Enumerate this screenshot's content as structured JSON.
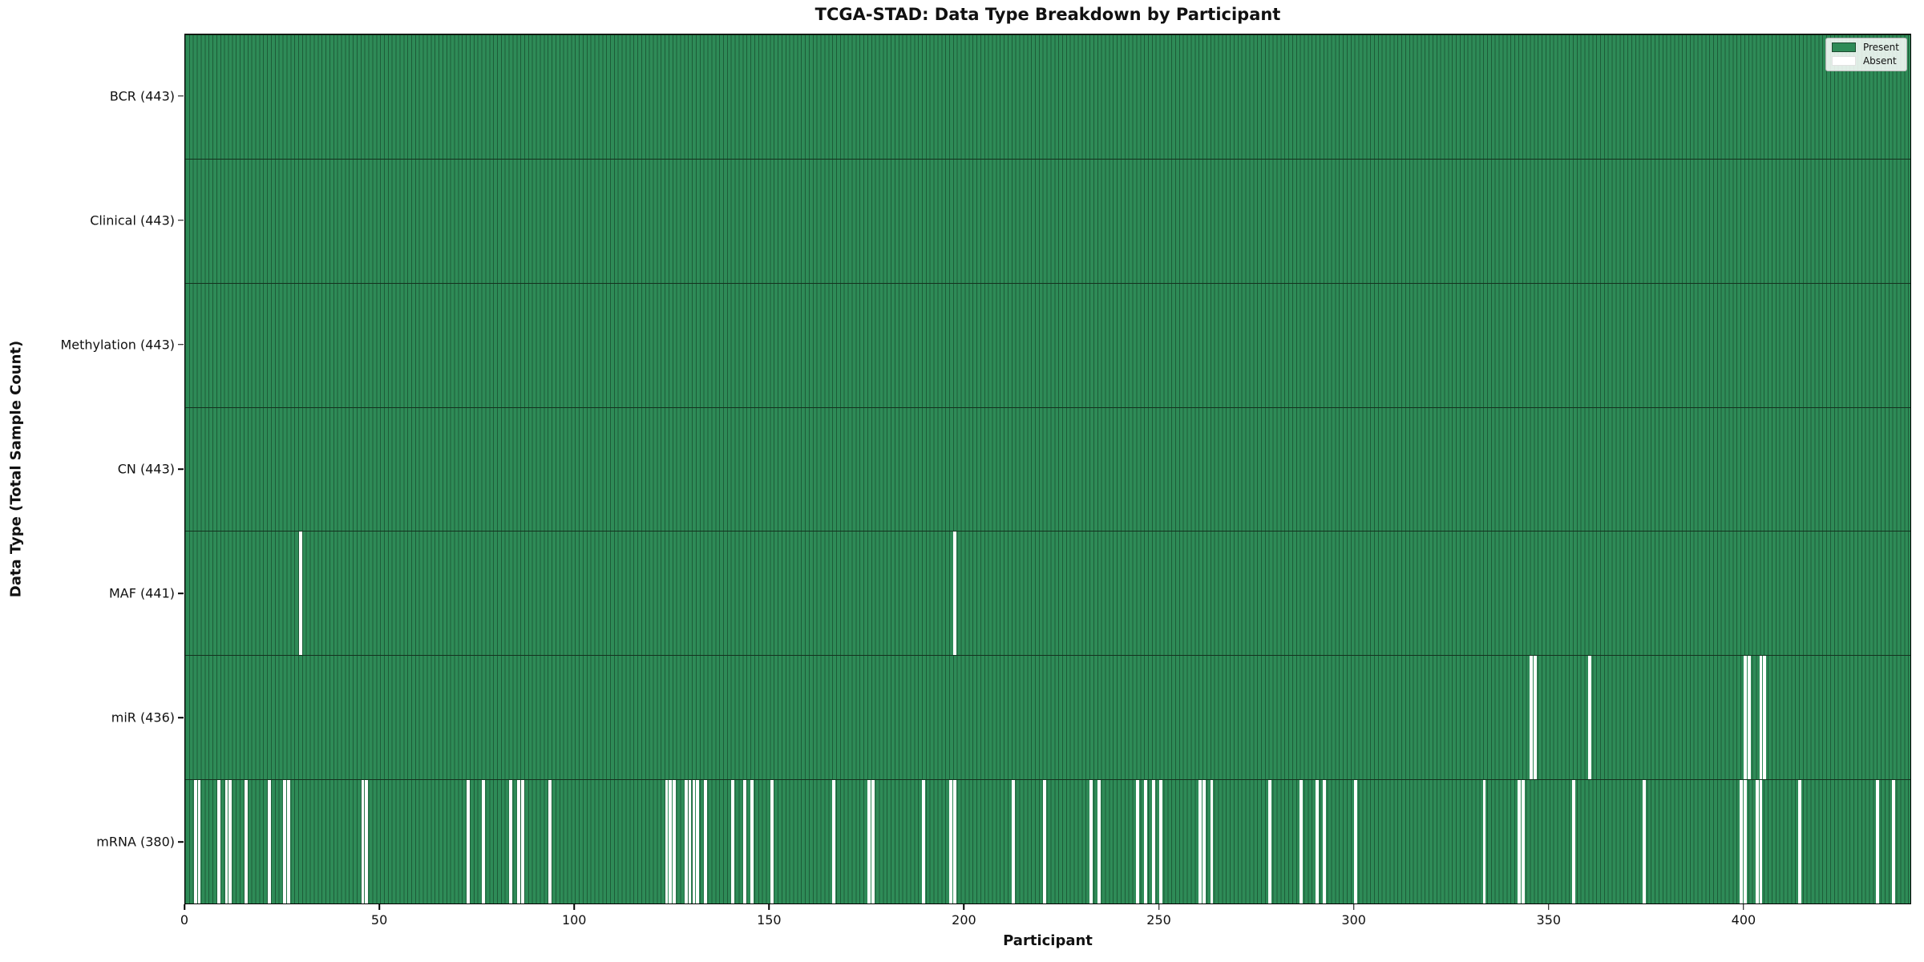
{
  "title": "TCGA-STAD: Data Type Breakdown by Participant",
  "xlabel": "Participant",
  "ylabel": "Data Type (Total Sample Count)",
  "legend": {
    "present_label": "Present",
    "absent_label": "Absent"
  },
  "colors": {
    "present": "#2e8b57",
    "absent": "#ffffff",
    "bar_edge": "#1d5c38",
    "row_separator": "#14321f",
    "axis": "#000000"
  },
  "chart_data": {
    "type": "heatmap",
    "title": "TCGA-STAD: Data Type Breakdown by Participant",
    "xlabel": "Participant",
    "ylabel": "Data Type (Total Sample Count)",
    "legend_entries": [
      {
        "label": "Present",
        "color": "#2e8b57"
      },
      {
        "label": "Absent",
        "color": "#ffffff"
      }
    ],
    "legend_position": "upper-right",
    "n_participants": 443,
    "x_range": [
      0,
      443
    ],
    "x_ticks": [
      0,
      50,
      100,
      150,
      200,
      250,
      300,
      350,
      400
    ],
    "grid": false,
    "rows": [
      {
        "name": "BCR",
        "label": "BCR (443)",
        "present_count": 443,
        "absent_participants": []
      },
      {
        "name": "Clinical",
        "label": "Clinical (443)",
        "present_count": 443,
        "absent_participants": []
      },
      {
        "name": "Methylation",
        "label": "Methylation (443)",
        "present_count": 443,
        "absent_participants": []
      },
      {
        "name": "CN",
        "label": "CN (443)",
        "present_count": 443,
        "absent_participants": []
      },
      {
        "name": "MAF",
        "label": "MAF (441)",
        "present_count": 441,
        "absent_participants": [
          29,
          197
        ]
      },
      {
        "name": "miR",
        "label": "miR (436)",
        "present_count": 436,
        "absent_participants": [
          345,
          346,
          360,
          400,
          401,
          404,
          405
        ]
      },
      {
        "name": "mRNA",
        "label": "mRNA (380)",
        "present_count": 380,
        "absent_participants": [
          2,
          3,
          8,
          10,
          11,
          15,
          21,
          25,
          26,
          45,
          46,
          72,
          76,
          83,
          85,
          86,
          93,
          123,
          124,
          125,
          128,
          129,
          130,
          131,
          133,
          140,
          143,
          145,
          150,
          166,
          175,
          176,
          189,
          196,
          197,
          212,
          220,
          232,
          234,
          244,
          246,
          248,
          250,
          260,
          261,
          263,
          278,
          286,
          290,
          292,
          300,
          333,
          342,
          343,
          356,
          374,
          399,
          400,
          403,
          404,
          414,
          434,
          438
        ]
      }
    ]
  }
}
